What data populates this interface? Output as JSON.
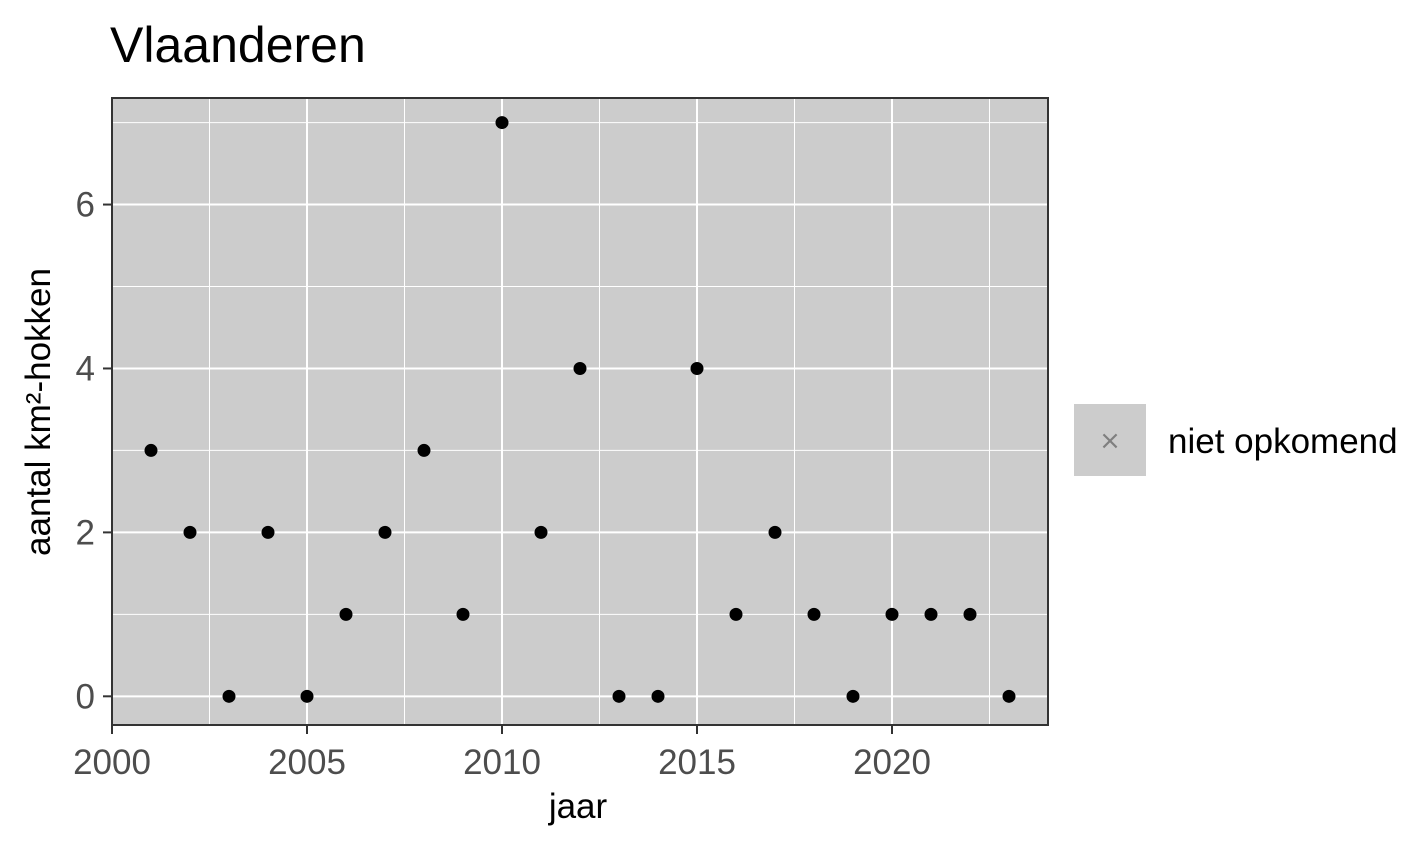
{
  "chart_data": {
    "type": "scatter",
    "title": "Vlaanderen",
    "xlabel": "jaar",
    "ylabel": "aantal km²-hokken",
    "xlim": [
      2000,
      2024
    ],
    "ylim": [
      -0.35,
      7.3
    ],
    "x_ticks": [
      2000,
      2005,
      2010,
      2015,
      2020
    ],
    "x_tick_labels": [
      "2000",
      "2005",
      "2010",
      "2015",
      "2020"
    ],
    "y_ticks": [
      0,
      2,
      4,
      6
    ],
    "y_tick_labels": [
      "0",
      "2",
      "4",
      "6"
    ],
    "grid": true,
    "legend_position": "right",
    "series": [
      {
        "name": "niet opkomend",
        "legend_marker": "×",
        "x": [
          2001,
          2002,
          2003,
          2004,
          2005,
          2006,
          2007,
          2008,
          2009,
          2010,
          2011,
          2012,
          2013,
          2014,
          2015,
          2016,
          2017,
          2018,
          2019,
          2020,
          2021,
          2022,
          2023
        ],
        "y": [
          3,
          2,
          0,
          2,
          0,
          1,
          2,
          3,
          1,
          7,
          2,
          4,
          0,
          0,
          4,
          1,
          2,
          1,
          0,
          1,
          1,
          1,
          0
        ]
      }
    ],
    "colors": {
      "panel_background": "#cccccc",
      "grid": "#ffffff",
      "point": "#000000",
      "legend_marker": "#7f7f7f",
      "tick_text": "#4d4d4d"
    }
  }
}
